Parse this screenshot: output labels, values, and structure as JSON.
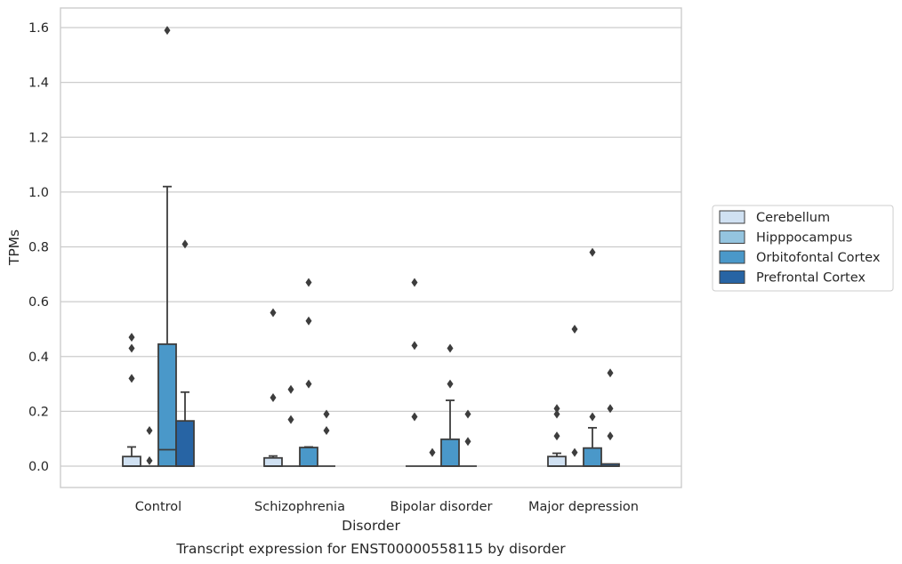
{
  "chart_data": {
    "type": "box",
    "title": "Transcript expression for ENST00000558115 by disorder",
    "xlabel": "Disorder",
    "ylabel": "TPMs",
    "categories": [
      "Control",
      "Schizophrenia",
      "Bipolar disorder",
      "Major depression"
    ],
    "ylim": [
      -0.08,
      1.67
    ],
    "yticks": [
      0.0,
      0.2,
      0.4,
      0.6,
      0.8,
      1.0,
      1.2,
      1.4,
      1.6
    ],
    "ytick_labels": [
      "0.0",
      "0.2",
      "0.4",
      "0.6",
      "0.8",
      "1.0",
      "1.2",
      "1.4",
      "1.6"
    ],
    "grid": true,
    "legend_position": "right",
    "series": [
      {
        "name": "Cerebellum",
        "color": "#d0e1f2",
        "boxes": [
          {
            "q1": 0.0,
            "median": 0.0,
            "q3": 0.035,
            "whislo": 0.0,
            "whishi": 0.07,
            "fliers": [
              0.47,
              0.43,
              0.32
            ]
          },
          {
            "q1": 0.0,
            "median": 0.0,
            "q3": 0.03,
            "whislo": 0.0,
            "whishi": 0.037,
            "fliers": [
              0.56,
              0.25
            ]
          },
          {
            "q1": 0.0,
            "median": 0.0,
            "q3": 0.0,
            "whislo": 0.0,
            "whishi": 0.0,
            "fliers": [
              0.67,
              0.44,
              0.18
            ]
          },
          {
            "q1": 0.0,
            "median": 0.0,
            "q3": 0.035,
            "whislo": 0.0,
            "whishi": 0.047,
            "fliers": [
              0.21,
              0.19,
              0.11
            ]
          }
        ]
      },
      {
        "name": "Hipppocampus",
        "color": "#94c4df",
        "boxes": [
          {
            "q1": 0.0,
            "median": 0.0,
            "q3": 0.0,
            "whislo": 0.0,
            "whishi": 0.0,
            "fliers": [
              0.13,
              0.02
            ]
          },
          {
            "q1": 0.0,
            "median": 0.0,
            "q3": 0.0,
            "whislo": 0.0,
            "whishi": 0.0,
            "fliers": [
              0.28,
              0.17
            ]
          },
          {
            "q1": 0.0,
            "median": 0.0,
            "q3": 0.0,
            "whislo": 0.0,
            "whishi": 0.0,
            "fliers": [
              0.05
            ]
          },
          {
            "q1": 0.0,
            "median": 0.0,
            "q3": 0.0,
            "whislo": 0.0,
            "whishi": 0.0,
            "fliers": [
              0.5,
              0.05
            ]
          }
        ]
      },
      {
        "name": "Orbitofontal Cortex",
        "color": "#4a98c9",
        "boxes": [
          {
            "q1": 0.0,
            "median": 0.06,
            "q3": 0.445,
            "whislo": 0.0,
            "whishi": 1.02,
            "fliers": [
              1.59
            ]
          },
          {
            "q1": 0.0,
            "median": 0.0,
            "q3": 0.068,
            "whislo": 0.0,
            "whishi": 0.07,
            "fliers": [
              0.67,
              0.53,
              0.3
            ]
          },
          {
            "q1": 0.0,
            "median": 0.0,
            "q3": 0.098,
            "whislo": 0.0,
            "whishi": 0.24,
            "fliers": [
              0.43,
              0.3
            ]
          },
          {
            "q1": 0.0,
            "median": 0.0,
            "q3": 0.066,
            "whislo": 0.0,
            "whishi": 0.14,
            "fliers": [
              0.78,
              0.18
            ]
          }
        ]
      },
      {
        "name": "Prefrontal Cortex",
        "color": "#2764a4",
        "boxes": [
          {
            "q1": 0.0,
            "median": 0.0,
            "q3": 0.165,
            "whislo": 0.0,
            "whishi": 0.27,
            "fliers": [
              0.81
            ]
          },
          {
            "q1": 0.0,
            "median": 0.0,
            "q3": 0.0,
            "whislo": 0.0,
            "whishi": 0.0,
            "fliers": [
              0.19,
              0.13
            ]
          },
          {
            "q1": 0.0,
            "median": 0.0,
            "q3": 0.0,
            "whislo": 0.0,
            "whishi": 0.0,
            "fliers": [
              0.19,
              0.09
            ]
          },
          {
            "q1": 0.0,
            "median": 0.0,
            "q3": 0.008,
            "whislo": 0.0,
            "whishi": 0.008,
            "fliers": [
              0.34,
              0.21,
              0.11
            ]
          }
        ]
      }
    ]
  }
}
